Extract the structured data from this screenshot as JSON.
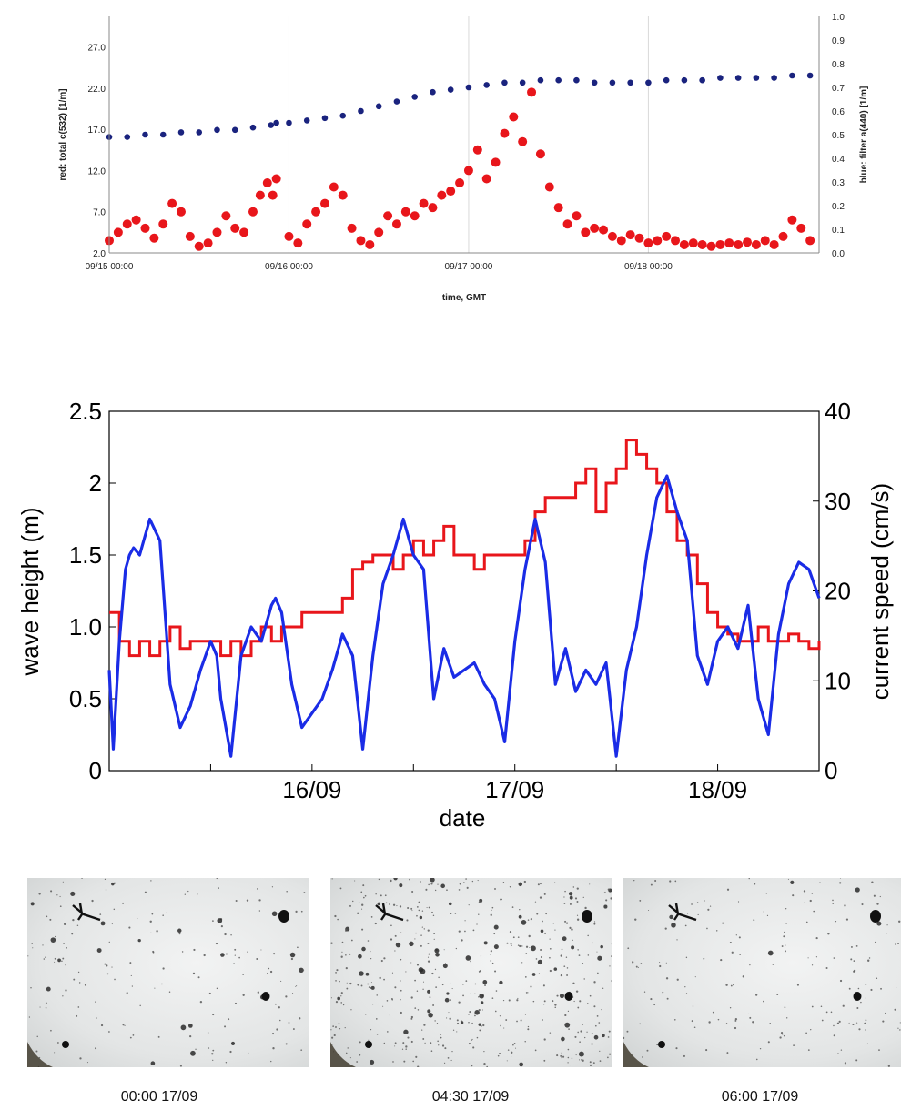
{
  "chart_data": [
    {
      "type": "scatter",
      "xlabel": "time, GMT",
      "ylabel_left": "red: total c(532) [1/m]",
      "ylabel_right": "blue: filter a(440) [1/m]",
      "x_ticks": [
        "09/15 00:00",
        "09/16 00:00",
        "09/17 00:00",
        "09/18 00:00"
      ],
      "x_range_days": [
        15.0,
        18.95
      ],
      "y_left_ticks": [
        "2.0",
        "7.0",
        "12.0",
        "17.0",
        "22.0",
        "27.0"
      ],
      "y_left_range": [
        2.0,
        30.7
      ],
      "y_right_ticks": [
        "0.0",
        "0.1",
        "0.2",
        "0.3",
        "0.4",
        "0.5",
        "0.6",
        "0.7",
        "0.8",
        "0.9",
        "1.0"
      ],
      "y_right_range": [
        0.0,
        1.0
      ],
      "grid": "vertical",
      "series": [
        {
          "color": "#e8161b",
          "axis": "left",
          "x": [
            15.0,
            15.05,
            15.1,
            15.15,
            15.2,
            15.25,
            15.3,
            15.35,
            15.4,
            15.45,
            15.5,
            15.55,
            15.6,
            15.65,
            15.7,
            15.75,
            15.8,
            15.84,
            15.88,
            15.91,
            15.93,
            16.0,
            16.05,
            16.1,
            16.15,
            16.2,
            16.25,
            16.3,
            16.35,
            16.4,
            16.45,
            16.5,
            16.55,
            16.6,
            16.65,
            16.7,
            16.75,
            16.8,
            16.85,
            16.9,
            16.95,
            17.0,
            17.05,
            17.1,
            17.15,
            17.2,
            17.25,
            17.3,
            17.35,
            17.4,
            17.45,
            17.5,
            17.55,
            17.6,
            17.65,
            17.7,
            17.75,
            17.8,
            17.85,
            17.9,
            17.95,
            18.0,
            18.05,
            18.1,
            18.15,
            18.2,
            18.25,
            18.3,
            18.35,
            18.4,
            18.45,
            18.5,
            18.55,
            18.6,
            18.65,
            18.7,
            18.75,
            18.8,
            18.85,
            18.9
          ],
          "y": [
            3.5,
            4.5,
            5.5,
            6.0,
            5.0,
            3.8,
            5.5,
            8.0,
            7.0,
            4.0,
            2.8,
            3.2,
            4.5,
            6.5,
            5.0,
            4.5,
            7.0,
            9.0,
            10.5,
            9.0,
            11.0,
            4.0,
            3.2,
            5.5,
            7.0,
            8.0,
            10.0,
            9.0,
            5.0,
            3.5,
            3.0,
            4.5,
            6.5,
            5.5,
            7.0,
            6.5,
            8.0,
            7.5,
            9.0,
            9.5,
            10.5,
            12.0,
            14.5,
            11.0,
            13.0,
            16.5,
            18.5,
            15.5,
            21.5,
            14.0,
            10.0,
            7.5,
            5.5,
            6.5,
            4.5,
            5.0,
            4.8,
            4.0,
            3.5,
            4.2,
            3.8,
            3.2,
            3.5,
            4.0,
            3.5,
            3.0,
            3.2,
            3.0,
            2.8,
            3.0,
            3.2,
            3.0,
            3.3,
            3.0,
            3.5,
            3.0,
            4.0,
            6.0,
            5.0,
            3.5
          ]
        },
        {
          "color": "#1a237e",
          "axis": "right",
          "x": [
            15.0,
            15.1,
            15.2,
            15.3,
            15.4,
            15.5,
            15.6,
            15.7,
            15.8,
            15.9,
            15.93,
            16.0,
            16.1,
            16.2,
            16.3,
            16.4,
            16.5,
            16.6,
            16.7,
            16.8,
            16.9,
            17.0,
            17.1,
            17.2,
            17.3,
            17.4,
            17.5,
            17.6,
            17.7,
            17.8,
            17.9,
            18.0,
            18.1,
            18.2,
            18.3,
            18.4,
            18.5,
            18.6,
            18.7,
            18.8,
            18.9
          ],
          "y": [
            0.49,
            0.49,
            0.5,
            0.5,
            0.51,
            0.51,
            0.52,
            0.52,
            0.53,
            0.54,
            0.55,
            0.55,
            0.56,
            0.57,
            0.58,
            0.6,
            0.62,
            0.64,
            0.66,
            0.68,
            0.69,
            0.7,
            0.71,
            0.72,
            0.72,
            0.73,
            0.73,
            0.73,
            0.72,
            0.72,
            0.72,
            0.72,
            0.73,
            0.73,
            0.73,
            0.74,
            0.74,
            0.74,
            0.74,
            0.75,
            0.75
          ]
        }
      ]
    },
    {
      "type": "line",
      "xlabel": "date",
      "ylabel_left": "wave height (m)",
      "ylabel_right": "current speed (cm/s)",
      "x_ticks": [
        "16/09",
        "17/09",
        "18/09"
      ],
      "x_range_days": [
        15.0,
        18.5
      ],
      "y_left_ticks": [
        "0",
        "0.5",
        "1.0",
        "1.5",
        "2",
        "2.5"
      ],
      "y_left_range": [
        0,
        2.5
      ],
      "y_right_ticks": [
        "0",
        "10",
        "20",
        "30",
        "40"
      ],
      "y_right_range": [
        0,
        40
      ],
      "series": [
        {
          "color": "#e8161b",
          "axis": "left",
          "x": [
            15.0,
            15.05,
            15.1,
            15.15,
            15.2,
            15.25,
            15.3,
            15.35,
            15.4,
            15.45,
            15.5,
            15.55,
            15.6,
            15.65,
            15.7,
            15.75,
            15.8,
            15.85,
            15.9,
            15.95,
            16.0,
            16.05,
            16.1,
            16.15,
            16.2,
            16.25,
            16.3,
            16.35,
            16.4,
            16.45,
            16.5,
            16.55,
            16.6,
            16.65,
            16.7,
            16.75,
            16.8,
            16.85,
            16.9,
            16.95,
            17.0,
            17.05,
            17.1,
            17.15,
            17.2,
            17.25,
            17.3,
            17.35,
            17.4,
            17.45,
            17.5,
            17.55,
            17.6,
            17.65,
            17.7,
            17.75,
            17.8,
            17.85,
            17.9,
            17.95,
            18.0,
            18.05,
            18.1,
            18.15,
            18.2,
            18.25,
            18.3,
            18.35,
            18.4,
            18.45,
            18.5
          ],
          "y": [
            1.1,
            0.9,
            0.8,
            0.9,
            0.8,
            0.9,
            1.0,
            0.85,
            0.9,
            0.9,
            0.9,
            0.8,
            0.9,
            0.8,
            0.9,
            1.0,
            0.9,
            1.0,
            1.0,
            1.1,
            1.1,
            1.1,
            1.1,
            1.2,
            1.4,
            1.45,
            1.5,
            1.5,
            1.4,
            1.5,
            1.6,
            1.5,
            1.6,
            1.7,
            1.5,
            1.5,
            1.4,
            1.5,
            1.5,
            1.5,
            1.5,
            1.6,
            1.8,
            1.9,
            1.9,
            1.9,
            2.0,
            2.1,
            1.8,
            2.0,
            2.1,
            2.3,
            2.2,
            2.1,
            2.0,
            1.8,
            1.6,
            1.5,
            1.3,
            1.1,
            1.0,
            0.95,
            0.9,
            0.9,
            1.0,
            0.9,
            0.9,
            0.95,
            0.9,
            0.85,
            0.9
          ]
        },
        {
          "color": "#1a2ce6",
          "axis": "left",
          "x": [
            15.0,
            15.02,
            15.05,
            15.08,
            15.1,
            15.12,
            15.15,
            15.2,
            15.25,
            15.28,
            15.3,
            15.35,
            15.4,
            15.45,
            15.5,
            15.53,
            15.55,
            15.6,
            15.65,
            15.7,
            15.75,
            15.8,
            15.82,
            15.85,
            15.9,
            15.95,
            16.0,
            16.05,
            16.1,
            16.15,
            16.2,
            16.25,
            16.3,
            16.35,
            16.4,
            16.45,
            16.5,
            16.55,
            16.6,
            16.65,
            16.7,
            16.75,
            16.8,
            16.85,
            16.9,
            16.95,
            17.0,
            17.02,
            17.05,
            17.1,
            17.15,
            17.2,
            17.25,
            17.3,
            17.35,
            17.4,
            17.45,
            17.5,
            17.55,
            17.6,
            17.65,
            17.7,
            17.75,
            17.8,
            17.85,
            17.9,
            17.95,
            18.0,
            18.05,
            18.1,
            18.15,
            18.2,
            18.25,
            18.3,
            18.35,
            18.4,
            18.45,
            18.5
          ],
          "y": [
            0.7,
            0.15,
            0.9,
            1.4,
            1.5,
            1.55,
            1.5,
            1.75,
            1.6,
            1.0,
            0.6,
            0.3,
            0.45,
            0.7,
            0.9,
            0.8,
            0.5,
            0.1,
            0.8,
            1.0,
            0.9,
            1.15,
            1.2,
            1.1,
            0.6,
            0.3,
            0.4,
            0.5,
            0.7,
            0.95,
            0.8,
            0.15,
            0.8,
            1.3,
            1.5,
            1.75,
            1.5,
            1.4,
            0.5,
            0.85,
            0.65,
            0.7,
            0.75,
            0.6,
            0.5,
            0.2,
            0.9,
            1.1,
            1.4,
            1.75,
            1.45,
            0.6,
            0.85,
            0.55,
            0.7,
            0.6,
            0.75,
            0.1,
            0.7,
            1.0,
            1.5,
            1.9,
            2.05,
            1.8,
            1.6,
            0.8,
            0.6,
            0.9,
            1.0,
            0.85,
            1.15,
            0.5,
            0.25,
            0.95,
            1.3,
            1.45,
            1.4,
            1.2
          ]
        }
      ]
    }
  ],
  "photos": [
    {
      "caption": "00:00 17/09",
      "density": "low"
    },
    {
      "caption": "04:30 17/09",
      "density": "high"
    },
    {
      "caption": "06:00 17/09",
      "density": "low"
    }
  ]
}
